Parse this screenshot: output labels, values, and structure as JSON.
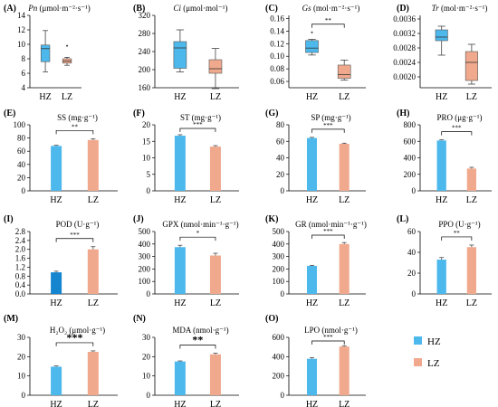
{
  "colors": {
    "HZ": "#4db8ec",
    "LZ": "#f0a98d",
    "POD_HZ": "#1585cf"
  },
  "legend": [
    {
      "name": "HZ",
      "color": "#4db8ec"
    },
    {
      "name": "LZ",
      "color": "#f0a98d"
    }
  ],
  "chart_data": [
    {
      "id": "A",
      "type": "box",
      "label": "(A)",
      "title_italic": "Pn",
      "title_rest": " (μmol·m⁻²·s⁻¹)",
      "categories": [
        "HZ",
        "LZ"
      ],
      "ylim": [
        4,
        14
      ],
      "yticks": [
        "4",
        "6",
        "8",
        "10",
        "12",
        "14"
      ],
      "boxes": [
        {
          "min": 6.2,
          "q1": 7.6,
          "med": 9.4,
          "q3": 9.9,
          "max": 11.9,
          "outliers": []
        },
        {
          "min": 7.1,
          "q1": 7.4,
          "med": 7.7,
          "q3": 8.0,
          "max": 8.2,
          "outliers": [
            9.8
          ]
        }
      ],
      "sig": ""
    },
    {
      "id": "B",
      "type": "box",
      "label": "(B)",
      "title_italic": "Ci",
      "title_rest": " (μmol·mol⁻¹)",
      "categories": [
        "HZ",
        "LZ"
      ],
      "ylim": [
        160,
        320
      ],
      "yticks": [
        "160",
        "200",
        "240",
        "280",
        "320"
      ],
      "boxes": [
        {
          "min": 195,
          "q1": 203,
          "med": 248,
          "q3": 262,
          "max": 288,
          "outliers": []
        },
        {
          "min": 158,
          "q1": 192,
          "med": 202,
          "q3": 222,
          "max": 247,
          "outliers": []
        }
      ],
      "sig": ""
    },
    {
      "id": "C",
      "type": "box",
      "label": "(C)",
      "title_italic": "Gs",
      "title_rest": " (mol·m⁻²·s⁻¹)",
      "categories": [
        "HZ",
        "LZ"
      ],
      "ylim": [
        0.05,
        0.165
      ],
      "yticks": [
        "0.06",
        "0.08",
        "0.10",
        "0.12",
        "0.14",
        "0.16"
      ],
      "boxes": [
        {
          "min": 0.102,
          "q1": 0.106,
          "med": 0.113,
          "q3": 0.125,
          "max": 0.127,
          "outliers": [
            0.138
          ]
        },
        {
          "min": 0.062,
          "q1": 0.065,
          "med": 0.071,
          "q3": 0.086,
          "max": 0.094,
          "outliers": []
        }
      ],
      "sig": "**"
    },
    {
      "id": "D",
      "type": "box",
      "label": "(D)",
      "title_italic": "Tr",
      "title_rest": " (mol·m⁻²·s⁻¹)",
      "categories": [
        "HZ",
        "LZ"
      ],
      "ylim": [
        0.0017,
        0.0037
      ],
      "yticks": [
        "0.0020",
        "0.0024",
        "0.0028",
        "0.0032",
        "0.0036"
      ],
      "boxes": [
        {
          "min": 0.0026,
          "q1": 0.003,
          "med": 0.0031,
          "q3": 0.0033,
          "max": 0.0034,
          "outliers": []
        },
        {
          "min": 0.0018,
          "q1": 0.0019,
          "med": 0.0024,
          "q3": 0.0027,
          "max": 0.0029,
          "outliers": []
        }
      ],
      "sig": ""
    },
    {
      "id": "E",
      "type": "bar",
      "label": "(E)",
      "title": "SS (mg·g⁻¹)",
      "categories": [
        "HZ",
        "LZ"
      ],
      "ylim": [
        0,
        100
      ],
      "yticks": [
        "0",
        "20",
        "40",
        "60",
        "80",
        "100"
      ],
      "values": [
        68,
        77
      ],
      "errors": [
        1,
        2
      ],
      "sig": "**"
    },
    {
      "id": "F",
      "type": "bar",
      "label": "(F)",
      "title": "ST (mg·g⁻¹)",
      "categories": [
        "HZ",
        "LZ"
      ],
      "ylim": [
        0,
        20
      ],
      "yticks": [
        "0",
        "5",
        "10",
        "15",
        "20"
      ],
      "values": [
        16.7,
        13.4
      ],
      "errors": [
        0.3,
        0.3
      ],
      "sig": "***"
    },
    {
      "id": "G",
      "type": "bar",
      "label": "(G)",
      "title": "SP (mg·g⁻¹)",
      "categories": [
        "HZ",
        "LZ"
      ],
      "ylim": [
        0,
        80
      ],
      "yticks": [
        "0",
        "20",
        "40",
        "60",
        "80"
      ],
      "values": [
        64,
        57
      ],
      "errors": [
        0.8,
        0.8
      ],
      "sig": "***"
    },
    {
      "id": "H",
      "type": "bar",
      "label": "(H)",
      "title": "PRO (μg·g⁻¹)",
      "categories": [
        "HZ",
        "LZ"
      ],
      "ylim": [
        0,
        800
      ],
      "yticks": [
        "0",
        "200",
        "400",
        "600",
        "800"
      ],
      "values": [
        610,
        270
      ],
      "errors": [
        8,
        15
      ],
      "sig": "***"
    },
    {
      "id": "I",
      "type": "bar",
      "label": "(I)",
      "title": "POD (U·g⁻¹)",
      "categories": [
        "HZ",
        "LZ"
      ],
      "ylim": [
        0,
        2.8
      ],
      "yticks": [
        "0.0",
        "0.4",
        "0.8",
        "1.2",
        "1.6",
        "2.0",
        "2.4",
        "2.8"
      ],
      "values": [
        0.97,
        2.0
      ],
      "errors": [
        0.05,
        0.12
      ],
      "sig": "***",
      "hz_dark": true
    },
    {
      "id": "J",
      "type": "bar",
      "label": "(J)",
      "title": "GPX (nmol·min⁻¹·g⁻¹)",
      "categories": [
        "HZ",
        "LZ"
      ],
      "ylim": [
        0,
        500
      ],
      "yticks": [
        "0",
        "100",
        "200",
        "300",
        "400",
        "500"
      ],
      "values": [
        375,
        308
      ],
      "errors": [
        15,
        18
      ],
      "sig": "*"
    },
    {
      "id": "K",
      "type": "bar",
      "label": "(K)",
      "title": "GR (nmol·min⁻¹·g⁻¹)",
      "categories": [
        "HZ",
        "LZ"
      ],
      "ylim": [
        0,
        500
      ],
      "yticks": [
        "0",
        "100",
        "200",
        "300",
        "400",
        "500"
      ],
      "values": [
        225,
        400
      ],
      "errors": [
        3,
        12
      ],
      "sig": "***"
    },
    {
      "id": "L",
      "type": "bar",
      "label": "(L)",
      "title": "PPO (U·g⁻¹)",
      "categories": [
        "HZ",
        "LZ"
      ],
      "ylim": [
        0,
        60
      ],
      "yticks": [
        "0",
        "20",
        "40",
        "60"
      ],
      "values": [
        33,
        45
      ],
      "errors": [
        2,
        2
      ],
      "sig": "**"
    },
    {
      "id": "M",
      "type": "bar",
      "label": "(M)",
      "title": "H₂O₂ (μmol·g⁻¹)",
      "categories": [
        "HZ",
        "LZ"
      ],
      "ylim": [
        0,
        30
      ],
      "yticks": [
        "0",
        "10",
        "20",
        "30"
      ],
      "values": [
        14.8,
        22.5
      ],
      "errors": [
        0.4,
        0.5
      ],
      "sig": "***",
      "sig_big": true
    },
    {
      "id": "N",
      "type": "bar",
      "label": "(N)",
      "title": "MDA (nmol·g⁻¹)",
      "categories": [
        "HZ",
        "LZ"
      ],
      "ylim": [
        0,
        30
      ],
      "yticks": [
        "0",
        "10",
        "20",
        "30"
      ],
      "values": [
        17.5,
        21.2
      ],
      "errors": [
        0.3,
        0.6
      ],
      "sig": "**",
      "sig_big": true
    },
    {
      "id": "O",
      "type": "bar",
      "label": "(O)",
      "title": "LPO (nmol·g⁻¹)",
      "categories": [
        "HZ",
        "LZ"
      ],
      "ylim": [
        0,
        600
      ],
      "yticks": [
        "0",
        "200",
        "400",
        "600"
      ],
      "values": [
        378,
        505
      ],
      "errors": [
        12,
        8
      ],
      "sig": "***"
    }
  ]
}
